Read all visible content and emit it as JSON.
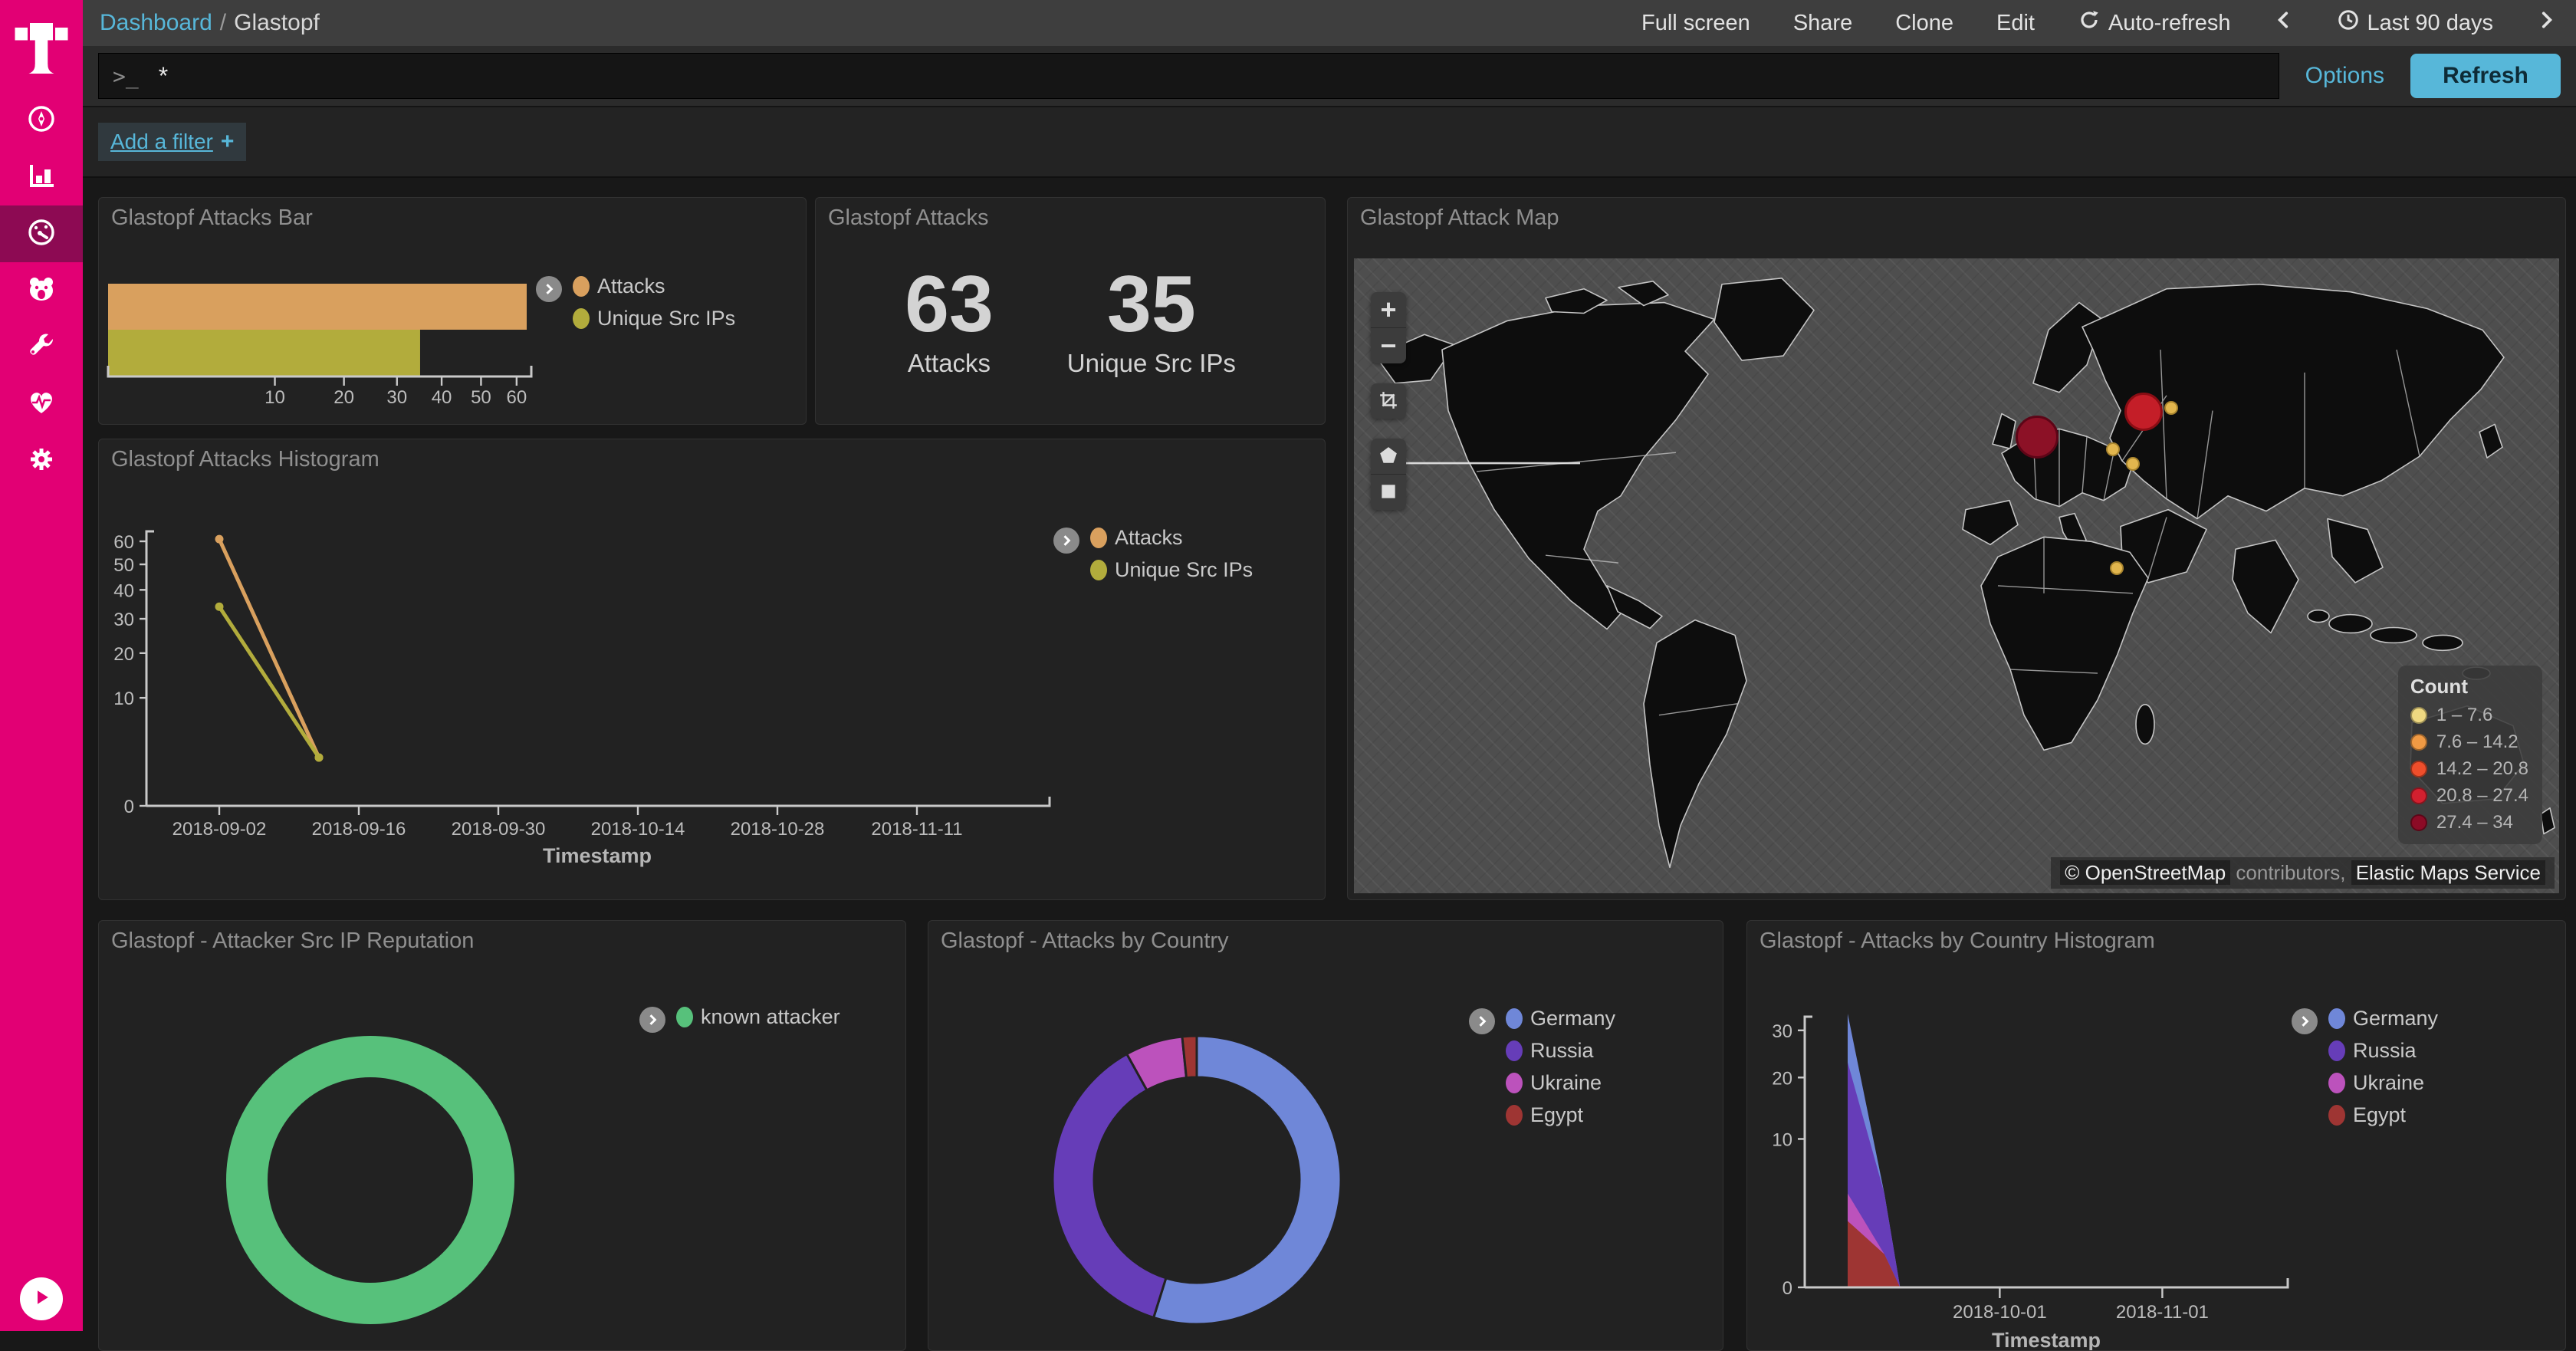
{
  "sidebar": {
    "logo_icon": "telekom-t-logo",
    "items": [
      {
        "icon": "compass-icon",
        "active": false
      },
      {
        "icon": "bar-chart-icon",
        "active": false
      },
      {
        "icon": "gauge-icon",
        "active": true
      },
      {
        "icon": "bear-face-icon",
        "active": false
      },
      {
        "icon": "wrench-icon",
        "active": false
      },
      {
        "icon": "heart-pulse-icon",
        "active": false
      },
      {
        "icon": "gear-icon",
        "active": false
      }
    ],
    "collapse_icon": "play-circle-icon"
  },
  "navbar": {
    "breadcrumb": {
      "root": "Dashboard",
      "separator": "/",
      "current": "Glastopf"
    },
    "actions": [
      "Full screen",
      "Share",
      "Clone",
      "Edit"
    ],
    "auto_refresh_label": "Auto-refresh",
    "time_range": "Last 90 days"
  },
  "query_bar": {
    "prompt": ">_",
    "value": "*",
    "options_label": "Options",
    "refresh_label": "Refresh"
  },
  "filter_bar": {
    "add_filter_label": "Add a filter",
    "plus": "+"
  },
  "chart_data": {
    "attacks_bar": {
      "type": "bar",
      "title": "Glastopf Attacks Bar",
      "orientation": "horizontal",
      "scale": "sqrt",
      "xticks": [
        10,
        20,
        30,
        40,
        50,
        60
      ],
      "xlim": [
        0,
        63
      ],
      "series": [
        {
          "name": "Attacks",
          "value": 63,
          "color": "#d9a05e"
        },
        {
          "name": "Unique Src IPs",
          "value": 35,
          "color": "#b2ac3c"
        }
      ]
    },
    "attacks_metric": {
      "type": "metric",
      "title": "Glastopf Attacks",
      "metrics": [
        {
          "value": "63",
          "label": "Attacks"
        },
        {
          "value": "35",
          "label": "Unique Src IPs"
        }
      ]
    },
    "attack_map": {
      "type": "map",
      "title": "Glastopf Attack Map",
      "controls": [
        "zoom-in",
        "zoom-out",
        "fit-bounds",
        "draw-polygon",
        "draw-rectangle"
      ],
      "legend_title": "Count",
      "legend": [
        {
          "range": "1 – 7.6",
          "color": "#efd981"
        },
        {
          "range": "7.6 – 14.2",
          "color": "#f09a44"
        },
        {
          "range": "14.2 – 20.8",
          "color": "#ef4e2b"
        },
        {
          "range": "20.8 – 27.4",
          "color": "#d2202f"
        },
        {
          "range": "27.4 – 34",
          "color": "#8c0b26"
        }
      ],
      "points": [
        {
          "x_pct": 56.7,
          "y_pct": 28.1,
          "d": 56,
          "fill": "#8c1126",
          "edge": "#5e0517"
        },
        {
          "x_pct": 65.5,
          "y_pct": 24.1,
          "d": 50,
          "fill": "#c41e28",
          "edge": "#8a0d14"
        },
        {
          "x_pct": 67.8,
          "y_pct": 23.5,
          "d": 18,
          "fill": "#e2b64e",
          "edge": "#a8842e"
        },
        {
          "x_pct": 63.0,
          "y_pct": 30.1,
          "d": 18,
          "fill": "#e2b64e",
          "edge": "#a8842e"
        },
        {
          "x_pct": 64.6,
          "y_pct": 32.4,
          "d": 18,
          "fill": "#e2b64e",
          "edge": "#a8842e"
        },
        {
          "x_pct": 63.3,
          "y_pct": 48.8,
          "d": 18,
          "fill": "#e2b64e",
          "edge": "#a8842e"
        }
      ],
      "attribution_prefix": "© OpenStreetMap",
      "attribution_mid": " contributors, ",
      "attribution_suffix": "Elastic Maps Service"
    },
    "attacks_histogram": {
      "type": "line",
      "title": "Glastopf Attacks Histogram",
      "scale": "sqrt",
      "x": [
        "2018-09-02",
        "2018-09-12"
      ],
      "xticks": [
        "2018-09-02",
        "2018-09-16",
        "2018-09-30",
        "2018-10-14",
        "2018-10-28",
        "2018-11-11"
      ],
      "yticks": [
        0,
        10,
        20,
        30,
        40,
        50,
        60
      ],
      "ylim": [
        0,
        63
      ],
      "xlabel": "Timestamp",
      "series": [
        {
          "name": "Attacks",
          "color": "#d9a05e",
          "values": [
            61,
            2
          ]
        },
        {
          "name": "Unique Src IPs",
          "color": "#b2ac3c",
          "values": [
            34,
            2
          ]
        }
      ]
    },
    "reputation_donut": {
      "type": "pie",
      "title": "Glastopf - Attacker Src IP Reputation",
      "donut": true,
      "slices": [
        {
          "label": "known attacker",
          "value": 63,
          "color": "#57c17b"
        }
      ]
    },
    "country_donut": {
      "type": "pie",
      "title": "Glastopf - Attacks by Country",
      "donut": true,
      "slices": [
        {
          "label": "Germany",
          "value": 34,
          "color": "#6f87d8"
        },
        {
          "label": "Russia",
          "value": 23,
          "color": "#663db8"
        },
        {
          "label": "Ukraine",
          "value": 4,
          "color": "#bc52bc"
        },
        {
          "label": "Egypt",
          "value": 1,
          "color": "#9e3533"
        }
      ]
    },
    "country_histogram": {
      "type": "area",
      "title": "Glastopf - Attacks by Country Histogram",
      "scale": "sqrt",
      "stacked": true,
      "x": [
        "2018-09-02",
        "2018-09-09",
        "2018-09-12"
      ],
      "xticks": [
        "2018-10-01",
        "2018-11-01"
      ],
      "yticks": [
        0,
        10,
        20,
        30
      ],
      "xlabel": "Timestamp",
      "stack_bottom_up": [
        "Egypt",
        "Ukraine",
        "Russia",
        "Germany"
      ],
      "series": [
        {
          "name": "Germany",
          "color": "#6f87d8",
          "values": [
            11,
            0,
            0
          ]
        },
        {
          "name": "Russia",
          "color": "#663db8",
          "values": [
            19,
            3.5,
            0
          ]
        },
        {
          "name": "Ukraine",
          "color": "#bc52bc",
          "values": [
            2,
            0,
            0
          ]
        },
        {
          "name": "Egypt",
          "color": "#9e3533",
          "values": [
            2,
            0.5,
            0
          ]
        }
      ]
    }
  }
}
